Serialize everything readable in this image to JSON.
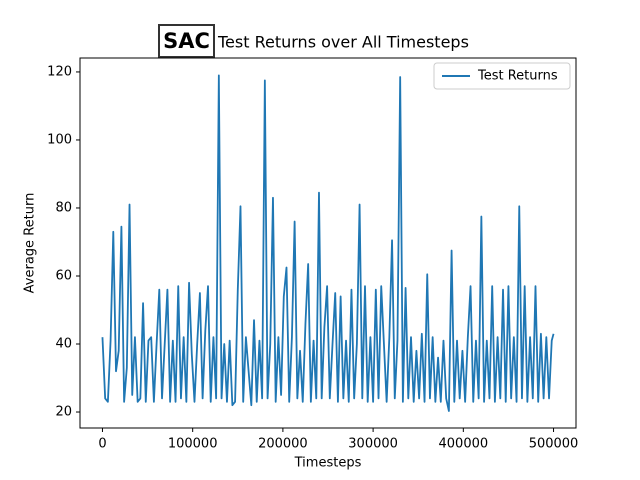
{
  "chart_data": {
    "type": "line",
    "badge": "SAC",
    "title": "Test Returns over All Timesteps",
    "x_label": "Timesteps",
    "y_label": "Average Return",
    "x": [
      0,
      3000,
      6000,
      9000,
      12000,
      15000,
      18000,
      21000,
      24000,
      27000,
      30000,
      33000,
      36000,
      39000,
      42000,
      45000,
      48000,
      51000,
      54000,
      57000,
      60000,
      63000,
      66000,
      69000,
      72000,
      75000,
      78000,
      81000,
      84000,
      87000,
      90000,
      93000,
      96000,
      99000,
      102000,
      105000,
      108000,
      111000,
      114000,
      117000,
      120000,
      123000,
      126000,
      129000,
      132000,
      135000,
      138000,
      141000,
      144000,
      147000,
      150000,
      153000,
      156000,
      159000,
      162000,
      165000,
      168000,
      171000,
      174000,
      177000,
      180000,
      183000,
      186000,
      189000,
      192000,
      195000,
      198000,
      201000,
      204000,
      207000,
      210000,
      213000,
      216000,
      219000,
      222000,
      225000,
      228000,
      231000,
      234000,
      237000,
      240000,
      243000,
      246000,
      249000,
      252000,
      255000,
      258000,
      261000,
      264000,
      267000,
      270000,
      273000,
      276000,
      279000,
      282000,
      285000,
      288000,
      291000,
      294000,
      297000,
      300000,
      303000,
      306000,
      309000,
      312000,
      315000,
      318000,
      321000,
      324000,
      327000,
      330000,
      333000,
      336000,
      339000,
      342000,
      345000,
      348000,
      351000,
      354000,
      357000,
      360000,
      363000,
      366000,
      369000,
      372000,
      375000,
      378000,
      381000,
      384000,
      387000,
      390000,
      393000,
      396000,
      399000,
      402000,
      405000,
      408000,
      411000,
      414000,
      417000,
      420000,
      423000,
      426000,
      429000,
      432000,
      435000,
      438000,
      441000,
      444000,
      447000,
      450000,
      453000,
      456000,
      459000,
      462000,
      465000,
      468000,
      471000,
      474000,
      477000,
      480000,
      483000,
      486000,
      489000,
      492000,
      495000,
      498000,
      500000
    ],
    "series": [
      {
        "name": "Test Returns",
        "color": "#1f77b4",
        "values": [
          42,
          24,
          23,
          41,
          73,
          32,
          38,
          74.5,
          23,
          33,
          81,
          25,
          42,
          23,
          24,
          52,
          23,
          41,
          42,
          23,
          40,
          56,
          24,
          40,
          56,
          23,
          41,
          23,
          57,
          24,
          42,
          23,
          58,
          37,
          23,
          40,
          55,
          24,
          44,
          57,
          23,
          42,
          24,
          119,
          24,
          40,
          23,
          41,
          22,
          23,
          56,
          80.5,
          23,
          42,
          32,
          22,
          47,
          23,
          41,
          24,
          117.5,
          24,
          40,
          83,
          23,
          42,
          25,
          54,
          62.5,
          23,
          42,
          76,
          24,
          38,
          23,
          46,
          63.5,
          23,
          41,
          24,
          84.5,
          24,
          45,
          57,
          24,
          40,
          55,
          23,
          54,
          24,
          41,
          23,
          56,
          24,
          40,
          81,
          24,
          57,
          23,
          42,
          23,
          56,
          24,
          57,
          40,
          23,
          42,
          70.5,
          24,
          41,
          118.5,
          23,
          56.5,
          24,
          42,
          23,
          38,
          24,
          43,
          23,
          60.5,
          24,
          42,
          23,
          36,
          23,
          41,
          24,
          20.3,
          67.5,
          23,
          41,
          24,
          38,
          23,
          42,
          57,
          23,
          41,
          24,
          77.5,
          23,
          41,
          24,
          57,
          23,
          42,
          24,
          56,
          23,
          57,
          24,
          42,
          23,
          80.5,
          24,
          57,
          23,
          42,
          24,
          57,
          23,
          43,
          24,
          42,
          24,
          41,
          43
        ]
      }
    ],
    "xlim": [
      -24900,
      524900
    ],
    "ylim": [
      15.3,
      124.1
    ],
    "xticks": [
      0,
      100000,
      200000,
      300000,
      400000,
      500000
    ],
    "yticks": [
      20,
      40,
      60,
      80,
      100,
      120
    ],
    "legend": "upper right",
    "grid": false
  }
}
